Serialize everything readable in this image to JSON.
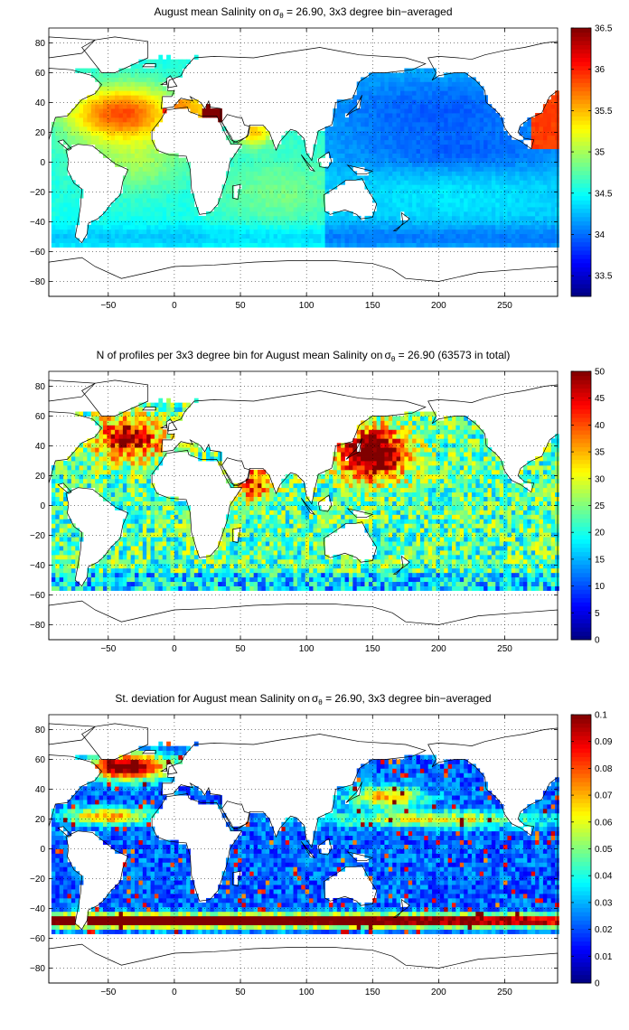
{
  "chart_data": [
    {
      "type": "heatmap",
      "title_main": "August mean Salinity on",
      "title_sigma": "σ",
      "title_sub": "θ",
      "title_rest": " = 26.90, 3x3 degree bin−averaged",
      "xlim": [
        -95,
        290
      ],
      "ylim": [
        -90,
        90
      ],
      "x_ticks": [
        -50,
        0,
        50,
        100,
        150,
        200,
        250
      ],
      "y_ticks": [
        -80,
        -60,
        -40,
        -20,
        0,
        20,
        40,
        60,
        80
      ],
      "grid": true,
      "colorbar": {
        "min": 33.25,
        "max": 36.5,
        "ticks": [
          33.5,
          34,
          34.5,
          35,
          35.5,
          36,
          36.5
        ],
        "colormap": "jet",
        "placement": "right"
      }
    },
    {
      "type": "heatmap",
      "title_main": "N of profiles per 3x3 degree bin for August mean Salinity on",
      "title_sigma": "σ",
      "title_sub": "θ",
      "title_rest": " = 26.90 (63573 in total)",
      "xlim": [
        -95,
        290
      ],
      "ylim": [
        -90,
        90
      ],
      "x_ticks": [
        -50,
        0,
        50,
        100,
        150,
        200,
        250
      ],
      "y_ticks": [
        -80,
        -60,
        -40,
        -20,
        0,
        20,
        40,
        60,
        80
      ],
      "grid": true,
      "colorbar": {
        "min": 0,
        "max": 50,
        "ticks": [
          0,
          5,
          10,
          15,
          20,
          25,
          30,
          35,
          40,
          45,
          50
        ],
        "colormap": "jet",
        "placement": "right"
      }
    },
    {
      "type": "heatmap",
      "title_main": "St. deviation for August mean Salinity on",
      "title_sigma": "σ",
      "title_sub": "θ",
      "title_rest": " = 26.90, 3x3 degree bin−averaged",
      "xlim": [
        -95,
        290
      ],
      "ylim": [
        -90,
        90
      ],
      "x_ticks": [
        -50,
        0,
        50,
        100,
        150,
        200,
        250
      ],
      "y_ticks": [
        -80,
        -60,
        -40,
        -20,
        0,
        20,
        40,
        60,
        80
      ],
      "grid": true,
      "colorbar": {
        "min": 0,
        "max": 0.1,
        "ticks": [
          0,
          0.01,
          0.02,
          0.03,
          0.04,
          0.05,
          0.06,
          0.07,
          0.08,
          0.09,
          0.1
        ],
        "colormap": "jet",
        "placement": "right"
      }
    }
  ]
}
